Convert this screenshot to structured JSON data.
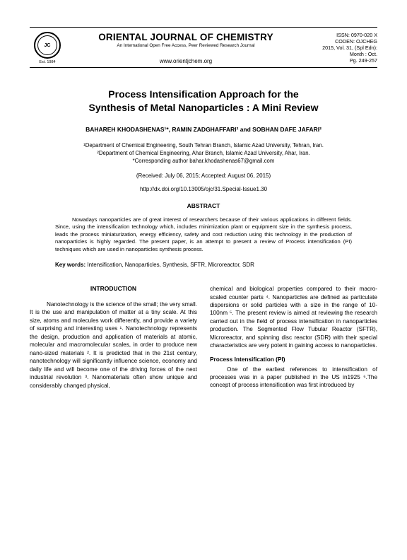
{
  "header": {
    "logo_text": "JC",
    "logo_caption": "Est. 1984",
    "journal_title": "ORIENTAL JOURNAL OF CHEMISTRY",
    "journal_subtitle": "An International Open Free Access, Peer Reviewed Research Journal",
    "journal_url": "www.orientjchem.org",
    "issn": "ISSN: 0970-020 X",
    "coden": "CODEN: OJCHEG",
    "issue": "2015, Vol. 31, (Spl Edn):",
    "month": "Month : Oct.",
    "pages": "Pg. 249-257"
  },
  "article": {
    "title_line1": "Process Intensification Approach for the",
    "title_line2": "Synthesis of Metal Nanoparticles : A Mini Review",
    "authors": "BAHAREH KHODASHENAS¹*, RAMIN ZADGHAFFARI² and SOBHAN DAFE JAFARI²",
    "affil1": "¹Department of Chemical Engineering, South Tehran Branch, Islamic Azad University, Tehran, Iran.",
    "affil2": "²Department of Chemical Engineering, Ahar Branch, Islamic Azad University, Ahar, Iran.",
    "corresponding": "*Corresponding author bahar.khodashenas67@gmail.com",
    "dates": "(Received: July 06, 2015; Accepted: August 06, 2015)",
    "doi": "http://dx.doi.org/10.13005/ojc/31.Special-Issue1.30",
    "abstract_heading": "ABSTRACT",
    "abstract": "Nowadays nanoparticles are of great interest of researchers because of their various applications in different fields. Since, using the intensification technology which, includes minimization plant or equipment size in the synthesis process, leads the process miniaturization, energy efficiency, safety and cost reduction using this technology in the production of nanoparticles is highly regarded. The present paper, is an attempt to present a review of Process intensification (PI) techniques which are used in nanoparticles synthesis process.",
    "keywords_label": "Key words:",
    "keywords": " Intensification, Nanoparticles, Synthesis, SFTR, Microreactor, SDR"
  },
  "body": {
    "intro_heading": "INTRODUCTION",
    "col1_p1": "Nanotechnology is the science of the small; the very small. It is the use and manipulation of matter at a tiny scale. At this size, atoms and molecules work differently, and provide a variety of surprising and interesting uses ¹. Nanotechnology represents the design, production and application of materials at atomic, molecular and macromolecular scales, in order to produce new nano-sized materials ². It is predicted that in the 21st century, nanotechnology will significantly influence science, economy and daily life and will become one of the driving forces of the next industrial revolution ³. Nanomaterials often show unique and considerably changed physical,",
    "col2_p1": "chemical and biological properties compared to their macro-scaled counter parts ⁴. Nanoparticles are defined as particulate dispersions or solid particles with a size in the range of 10-100nm ⁵. The present review is aimed at reviewing the research carried out in the field of process intensification in nanoparticles production. The Segmented Flow Tubular Reactor (SFTR), Microreactor, and spinning disc reactor (SDR) with their special characteristics are very potent in gaining access to nanoparticles.",
    "pi_heading": "Process Intensification (PI)",
    "col2_p2": "One of the earliest references to intensification of processes was in a paper published in the US in1925 ⁶.The concept of process intensification was first introduced by"
  }
}
